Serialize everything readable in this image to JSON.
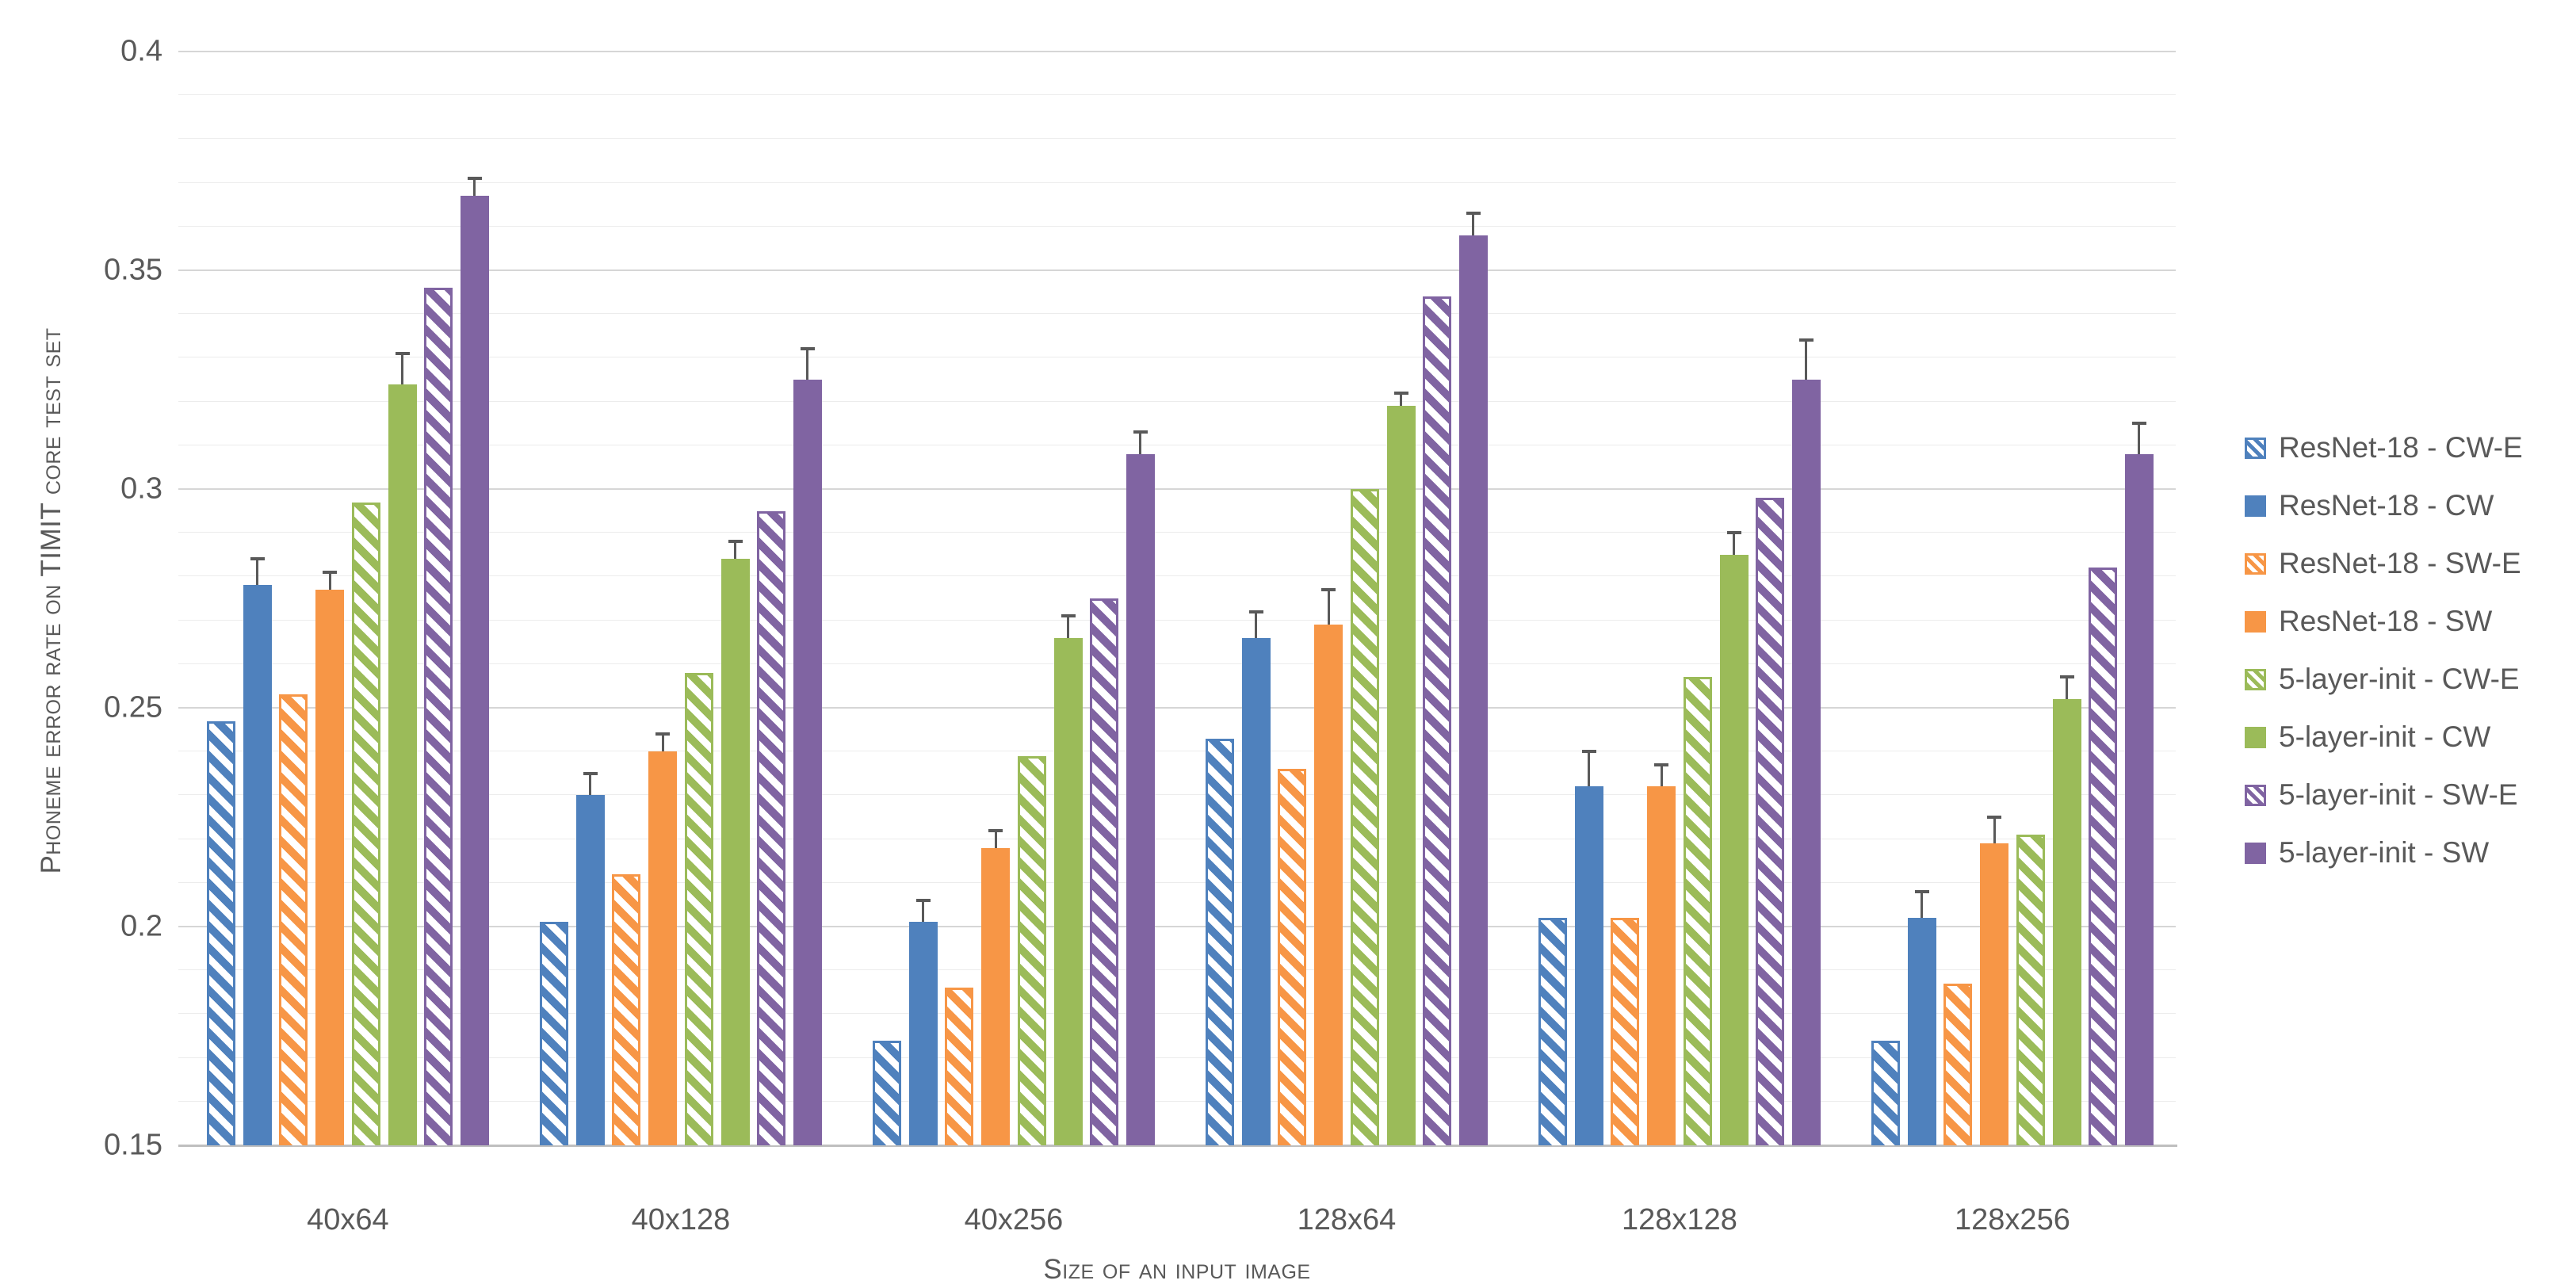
{
  "chart_data": {
    "type": "bar",
    "title": "",
    "categories": [
      "40x64",
      "40x128",
      "40x256",
      "128x64",
      "128x128",
      "128x256"
    ],
    "series": [
      {
        "name": "ResNet-18 - CW-E",
        "color": "#4F81BD",
        "hatch": true,
        "values": [
          0.247,
          0.201,
          0.174,
          0.243,
          0.202,
          0.174
        ],
        "errors": [
          null,
          null,
          null,
          null,
          null,
          null
        ]
      },
      {
        "name": "ResNet-18 - CW",
        "color": "#4F81BD",
        "hatch": false,
        "values": [
          0.278,
          0.23,
          0.201,
          0.266,
          0.232,
          0.202
        ],
        "errors": [
          0.006,
          0.005,
          0.005,
          0.006,
          0.008,
          0.006
        ]
      },
      {
        "name": "ResNet-18 - SW-E",
        "color": "#F79646",
        "hatch": true,
        "values": [
          0.253,
          0.212,
          0.186,
          0.236,
          0.202,
          0.187
        ],
        "errors": [
          null,
          null,
          null,
          null,
          null,
          null
        ]
      },
      {
        "name": "ResNet-18 - SW",
        "color": "#F79646",
        "hatch": false,
        "values": [
          0.277,
          0.24,
          0.218,
          0.269,
          0.232,
          0.219
        ],
        "errors": [
          0.004,
          0.004,
          0.004,
          0.008,
          0.005,
          0.006
        ]
      },
      {
        "name": "5-layer-init - CW-E",
        "color": "#9BBB59",
        "hatch": true,
        "values": [
          0.297,
          0.258,
          0.239,
          0.3,
          0.257,
          0.221
        ],
        "errors": [
          null,
          null,
          null,
          null,
          null,
          null
        ]
      },
      {
        "name": "5-layer-init - CW",
        "color": "#9BBB59",
        "hatch": false,
        "values": [
          0.324,
          0.284,
          0.266,
          0.319,
          0.285,
          0.252
        ],
        "errors": [
          0.007,
          0.004,
          0.005,
          0.003,
          0.005,
          0.005
        ]
      },
      {
        "name": "5-layer-init - SW-E",
        "color": "#8064A2",
        "hatch": true,
        "values": [
          0.346,
          0.295,
          0.275,
          0.344,
          0.298,
          0.282
        ],
        "errors": [
          null,
          null,
          null,
          null,
          null,
          null
        ]
      },
      {
        "name": "5-layer-init - SW",
        "color": "#8064A2",
        "hatch": false,
        "values": [
          0.367,
          0.325,
          0.308,
          0.358,
          0.325,
          0.308
        ],
        "errors": [
          0.004,
          0.007,
          0.005,
          0.005,
          0.009,
          0.007
        ]
      }
    ],
    "ylabel": "Phoneme error rate on TIMIT core test set",
    "xlabel": "Size of an input image",
    "ylim": [
      0.15,
      0.4
    ],
    "ytick_labels": [
      "0.15",
      "0.2",
      "0.25",
      "0.3",
      "0.35",
      "0.4"
    ],
    "yticks": [
      0.15,
      0.2,
      0.25,
      0.3,
      0.35,
      0.4
    ],
    "minor_step": 0.01,
    "grid": true,
    "legend_position": "right",
    "style": {
      "text_color": "#595959",
      "grid_minor_color": "#ECECEC",
      "grid_major_color": "#D6D6D6",
      "axis_line_color": "#BFBFBF",
      "error_bar_color": "#595959"
    }
  }
}
